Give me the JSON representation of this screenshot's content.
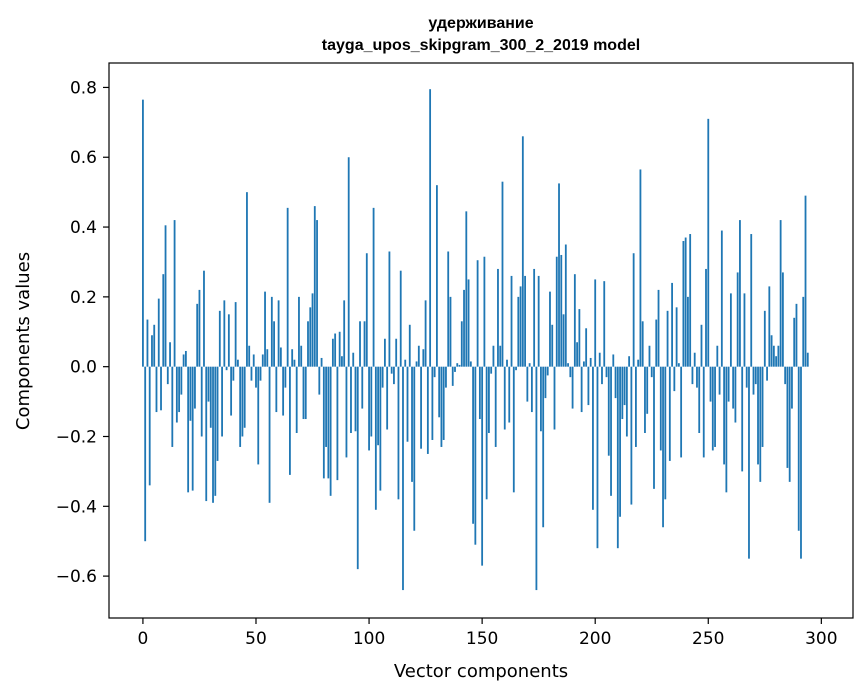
{
  "chart_data": {
    "type": "bar",
    "title": [
      "удерживание",
      "tayga_upos_skipgram_300_2_2019 model"
    ],
    "xlabel": "Vector components",
    "ylabel": "Components values",
    "xlim": [
      -15,
      314
    ],
    "ylim": [
      -0.72,
      0.87
    ],
    "xticks": [
      0,
      50,
      100,
      150,
      200,
      250,
      300
    ],
    "xtick_labels": [
      "0",
      "50",
      "100",
      "150",
      "200",
      "250",
      "300"
    ],
    "yticks": [
      -0.6,
      -0.4,
      -0.2,
      0.0,
      0.2,
      0.4,
      0.6,
      0.8
    ],
    "ytick_labels": [
      "−0.6",
      "−0.4",
      "−0.2",
      "0.0",
      "0.2",
      "0.4",
      "0.6",
      "0.8"
    ],
    "bar_color": "#1f77b4",
    "grid": false,
    "values": [
      0.765,
      -0.5,
      0.135,
      -0.34,
      0.09,
      0.12,
      -0.13,
      0.195,
      -0.125,
      0.265,
      0.405,
      -0.05,
      0.07,
      -0.23,
      0.42,
      -0.16,
      -0.13,
      -0.08,
      0.035,
      0.045,
      -0.36,
      -0.155,
      -0.355,
      -0.12,
      0.18,
      0.22,
      -0.2,
      0.275,
      -0.385,
      -0.1,
      -0.175,
      -0.39,
      -0.37,
      -0.27,
      0.16,
      -0.2,
      0.19,
      -0.01,
      0.15,
      -0.14,
      -0.04,
      0.185,
      0.02,
      -0.23,
      -0.2,
      -0.175,
      0.5,
      0.06,
      -0.04,
      0.035,
      -0.06,
      -0.28,
      -0.04,
      0.035,
      0.215,
      0.05,
      -0.39,
      0.2,
      0.13,
      -0.13,
      0.19,
      0.055,
      -0.14,
      -0.06,
      0.455,
      -0.31,
      0.05,
      0.02,
      -0.19,
      0.2,
      0.06,
      -0.15,
      -0.15,
      0.13,
      0.17,
      0.21,
      0.46,
      0.42,
      -0.08,
      0.025,
      -0.32,
      -0.23,
      -0.32,
      -0.37,
      0.08,
      0.095,
      -0.325,
      0.1,
      0.03,
      0.19,
      -0.26,
      0.6,
      -0.19,
      0.04,
      -0.185,
      -0.58,
      0.13,
      -0.12,
      0.13,
      0.325,
      -0.24,
      -0.2,
      0.455,
      -0.41,
      -0.225,
      -0.355,
      -0.06,
      0.08,
      -0.18,
      0.33,
      -0.02,
      -0.05,
      0.08,
      -0.38,
      0.275,
      -0.64,
      0.02,
      -0.215,
      0.12,
      -0.33,
      -0.47,
      0.015,
      0.06,
      -0.235,
      0.05,
      0.19,
      -0.25,
      0.795,
      -0.21,
      -0.03,
      0.52,
      -0.145,
      -0.23,
      -0.21,
      -0.06,
      0.33,
      0.2,
      -0.055,
      -0.015,
      0.01,
      0.005,
      0.13,
      0.22,
      0.445,
      0.25,
      0.015,
      -0.45,
      -0.51,
      0.305,
      -0.15,
      -0.57,
      0.315,
      -0.38,
      -0.19,
      -0.02,
      0.06,
      -0.23,
      0.28,
      0.06,
      0.53,
      -0.18,
      0.02,
      -0.16,
      0.26,
      -0.36,
      -0.01,
      0.2,
      0.23,
      0.66,
      0.26,
      -0.1,
      0.01,
      -0.13,
      0.28,
      -0.64,
      0.26,
      -0.185,
      -0.46,
      -0.09,
      -0.025,
      0.215,
      0.12,
      -0.18,
      0.315,
      0.525,
      0.32,
      0.15,
      0.35,
      0.01,
      -0.03,
      -0.12,
      0.265,
      0.07,
      0.165,
      -0.13,
      0.015,
      0.11,
      -0.11,
      0.025,
      -0.41,
      0.25,
      -0.52,
      0.04,
      -0.05,
      0.245,
      -0.03,
      -0.255,
      -0.37,
      0.035,
      -0.09,
      -0.52,
      -0.43,
      -0.15,
      -0.11,
      -0.2,
      0.03,
      -0.395,
      0.325,
      -0.23,
      0.02,
      0.565,
      0.13,
      -0.19,
      -0.135,
      0.06,
      -0.03,
      -0.35,
      0.135,
      0.22,
      -0.24,
      -0.46,
      -0.38,
      0.16,
      -0.27,
      0.24,
      -0.07,
      0.17,
      0.01,
      -0.26,
      0.36,
      0.37,
      0.2,
      0.38,
      -0.05,
      0.04,
      -0.06,
      -0.19,
      0.12,
      -0.26,
      0.28,
      0.71,
      -0.1,
      -0.24,
      -0.23,
      0.06,
      -0.08,
      0.39,
      -0.28,
      -0.36,
      -0.1,
      0.21,
      -0.12,
      -0.16,
      0.27,
      0.42,
      -0.3,
      0.21,
      -0.06,
      -0.55,
      0.38,
      -0.08,
      -0.05,
      -0.28,
      -0.33,
      -0.23,
      0.16,
      -0.04,
      0.23,
      0.09,
      0.06,
      0.03,
      0.06,
      0.42,
      0.27,
      -0.05,
      -0.29,
      -0.33,
      -0.12,
      0.14,
      0.18,
      -0.47,
      -0.55,
      0.2,
      0.49,
      0.04
    ]
  }
}
